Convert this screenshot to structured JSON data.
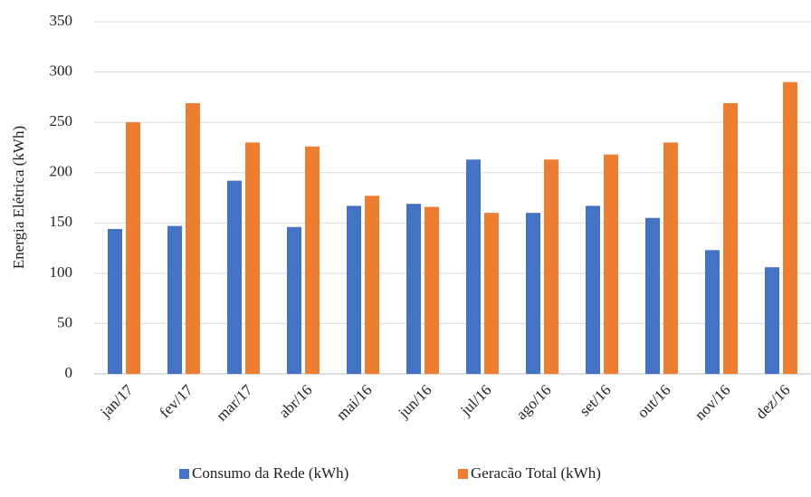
{
  "chart_data": {
    "type": "bar",
    "y_label": "Energia Elétrica (kWh)",
    "categories": [
      "jan/17",
      "fev/17",
      "mar/17",
      "abr/16",
      "mai/16",
      "jun/16",
      "jul/16",
      "ago/16",
      "set/16",
      "out/16",
      "nov/16",
      "dez/16"
    ],
    "series": [
      {
        "name": "Consumo da Rede (kWh)",
        "color": "#4472c4",
        "values": [
          144,
          147,
          192,
          146,
          167,
          169,
          213,
          160,
          167,
          155,
          123,
          106
        ]
      },
      {
        "name": "Geracão Total (kWh)",
        "color": "#ed7d31",
        "values": [
          250,
          269,
          230,
          226,
          177,
          166,
          160,
          213,
          218,
          230,
          269,
          290
        ]
      }
    ],
    "ylim": [
      0,
      350
    ],
    "yticks": [
      0,
      50,
      100,
      150,
      200,
      250,
      300,
      350
    ],
    "grid": true
  }
}
